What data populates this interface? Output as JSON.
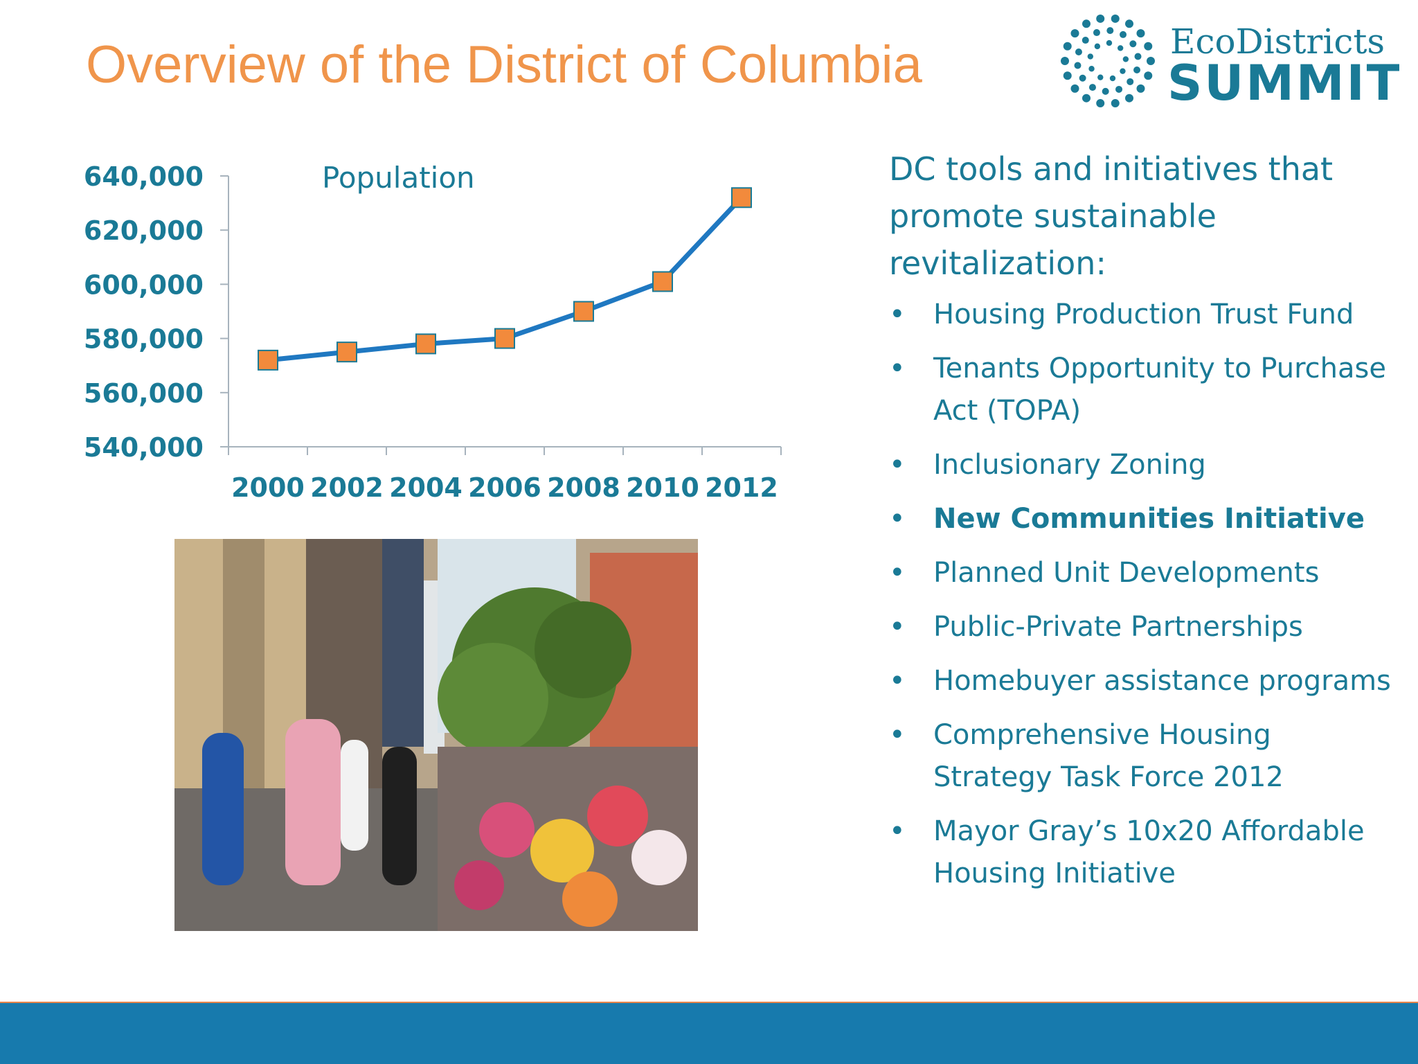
{
  "title": "Overview of the District of Columbia",
  "logo": {
    "top": "EcoDistricts",
    "bottom": "SUMMIT"
  },
  "colors": {
    "title": "#f0954b",
    "teal": "#1a7a96",
    "line": "#1f78c1",
    "marker": "#f28a3c",
    "footer": "#177aad",
    "footer_line": "#e8864a"
  },
  "chart_data": {
    "type": "line",
    "title": "Population",
    "x": [
      "2000",
      "2002",
      "2004",
      "2006",
      "2008",
      "2010",
      "2012"
    ],
    "series": [
      {
        "values": [
          572000,
          575000,
          578000,
          580000,
          590000,
          601000,
          632000
        ]
      }
    ],
    "yticks": [
      "540,000",
      "560,000",
      "580,000",
      "600,000",
      "620,000",
      "640,000"
    ],
    "ylim": [
      540000,
      640000
    ],
    "grid": false,
    "legend": "none"
  },
  "photo": {
    "icon": "street-market-photo"
  },
  "right": {
    "intro": "DC tools and initiatives that promote sustainable revitalization:",
    "bullet_glyph": "•",
    "items": [
      {
        "label": "Housing Production Trust Fund",
        "bold": false
      },
      {
        "label": "Tenants Opportunity to Purchase Act (TOPA)",
        "bold": false
      },
      {
        "label": "Inclusionary Zoning",
        "bold": false
      },
      {
        "label": "New Communities Initiative",
        "bold": true
      },
      {
        "label": "Planned Unit Developments",
        "bold": false
      },
      {
        "label": "Public-Private Partnerships",
        "bold": false
      },
      {
        "label": "Homebuyer assistance programs",
        "bold": false
      },
      {
        "label": "Comprehensive Housing Strategy Task Force 2012",
        "bold": false
      },
      {
        "label": "Mayor Gray’s 10x20 Affordable Housing Initiative",
        "bold": false
      }
    ]
  }
}
